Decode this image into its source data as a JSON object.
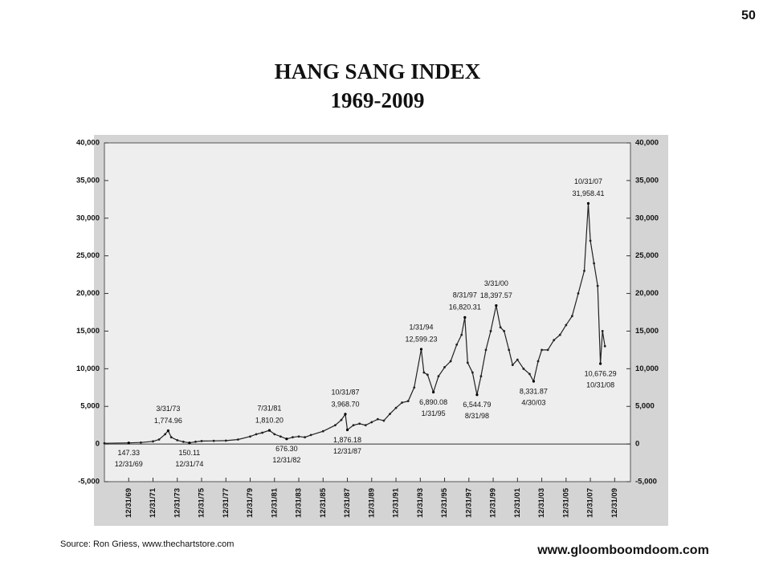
{
  "page_number": "50",
  "source": "Source:  Ron Griess, www.thechartstore.com",
  "website": "www.gloomboomdoom.com",
  "chart_data": {
    "type": "line",
    "title": "HANG  SANG  INDEX",
    "subtitle": "1969-2009",
    "color": "#222222",
    "x": [
      1968.0,
      1970.0,
      1971.0,
      1972.0,
      1972.5,
      1973.0,
      1973.25,
      1973.5,
      1974.0,
      1974.5,
      1975.0,
      1975.5,
      1976.0,
      1977.0,
      1978.0,
      1979.0,
      1980.0,
      1980.5,
      1981.0,
      1981.58,
      1982.0,
      1982.5,
      1983.0,
      1983.5,
      1984.0,
      1984.5,
      1985.0,
      1986.0,
      1987.0,
      1987.5,
      1987.83,
      1988.0,
      1988.5,
      1989.0,
      1989.5,
      1990.0,
      1990.5,
      1991.0,
      1991.5,
      1992.0,
      1992.5,
      1993.0,
      1993.5,
      1994.08,
      1994.3,
      1994.6,
      1995.08,
      1995.5,
      1996.0,
      1996.5,
      1997.0,
      1997.4,
      1997.67,
      1997.9,
      1998.3,
      1998.67,
      1999.0,
      1999.4,
      1999.8,
      2000.25,
      2000.6,
      2000.9,
      2001.3,
      2001.6,
      2002.0,
      2002.5,
      2003.0,
      2003.33,
      2003.7,
      2004.0,
      2004.5,
      2005.0,
      2005.5,
      2006.0,
      2006.5,
      2007.0,
      2007.5,
      2007.83,
      2008.0,
      2008.3,
      2008.6,
      2008.83,
      2009.0,
      2009.2
    ],
    "values": [
      100,
      147,
      200,
      350,
      600,
      1300,
      1775,
      900,
      500,
      300,
      150,
      300,
      400,
      420,
      450,
      600,
      1000,
      1300,
      1500,
      1810,
      1300,
      1000,
      676,
      900,
      1000,
      900,
      1200,
      1700,
      2500,
      3200,
      3969,
      1876,
      2500,
      2700,
      2500,
      2900,
      3300,
      3100,
      4000,
      4800,
      5500,
      5700,
      7500,
      12599,
      9500,
      9200,
      6890,
      9000,
      10200,
      11000,
      13200,
      14500,
      16820,
      10800,
      9500,
      6545,
      9000,
      12500,
      15000,
      18398,
      15500,
      15000,
      12500,
      10500,
      11200,
      10000,
      9300,
      8332,
      11000,
      12500,
      12500,
      13800,
      14500,
      15800,
      17000,
      20000,
      23000,
      31958,
      27000,
      24000,
      21000,
      10676,
      15000,
      13000
    ],
    "xlim": [
      1968,
      2011.3
    ],
    "xticks": [
      {
        "value": 1970,
        "label": "12/31/69"
      },
      {
        "value": 1972,
        "label": "12/31/71"
      },
      {
        "value": 1974,
        "label": "12/31/73"
      },
      {
        "value": 1976,
        "label": "12/31/75"
      },
      {
        "value": 1978,
        "label": "12/31/77"
      },
      {
        "value": 1980,
        "label": "12/31/79"
      },
      {
        "value": 1982,
        "label": "12/31/81"
      },
      {
        "value": 1984,
        "label": "12/31/83"
      },
      {
        "value": 1986,
        "label": "12/31/85"
      },
      {
        "value": 1988,
        "label": "12/31/87"
      },
      {
        "value": 1990,
        "label": "12/31/89"
      },
      {
        "value": 1992,
        "label": "12/31/91"
      },
      {
        "value": 1994,
        "label": "12/31/93"
      },
      {
        "value": 1996,
        "label": "12/31/95"
      },
      {
        "value": 1998,
        "label": "12/31/97"
      },
      {
        "value": 2000,
        "label": "12/31/99"
      },
      {
        "value": 2002,
        "label": "12/31/01"
      },
      {
        "value": 2004,
        "label": "12/31/03"
      },
      {
        "value": 2006,
        "label": "12/31/05"
      },
      {
        "value": 2008,
        "label": "12/31/07"
      },
      {
        "value": 2010,
        "label": "12/31/09"
      }
    ],
    "ylim": [
      -5000,
      40000
    ],
    "yticks": [
      {
        "value": -5000,
        "label": "-5,000"
      },
      0,
      {
        "value": 5000,
        "label": "5,000"
      },
      {
        "value": 10000,
        "label": "10,000"
      },
      {
        "value": 15000,
        "label": "15,000"
      },
      {
        "value": 20000,
        "label": "20,000"
      },
      {
        "value": 25000,
        "label": "25,000"
      },
      {
        "value": 30000,
        "label": "30,000"
      },
      {
        "value": 35000,
        "label": "35,000"
      },
      {
        "value": 40000,
        "label": "40,000"
      }
    ],
    "y2lim": [
      -5000,
      40000
    ],
    "y2ticks": [
      {
        "value": -5000,
        "label": "-5,000"
      },
      0,
      {
        "value": 5000,
        "label": "5,000"
      },
      {
        "value": 10000,
        "label": "10,000"
      },
      {
        "value": 15000,
        "label": "15,000"
      },
      {
        "value": 20000,
        "label": "20,000"
      },
      {
        "value": 25000,
        "label": "25,000"
      },
      {
        "value": 30000,
        "label": "30,000"
      },
      {
        "value": 35000,
        "label": "35,000"
      },
      {
        "value": 40000,
        "label": "40,000"
      }
    ],
    "annotations": [
      {
        "x": 1970.0,
        "date": "12/31/69",
        "value": 147.33,
        "label": "147.33"
      },
      {
        "x": 1973.25,
        "date": "3/31/73",
        "value": 1774.96,
        "label": "1,774.96"
      },
      {
        "x": 1975.0,
        "date": "12/31/74",
        "value": 150.11,
        "label": "150.11"
      },
      {
        "x": 1981.58,
        "date": "7/31/81",
        "value": 1810.2,
        "label": "1,810.20"
      },
      {
        "x": 1983.0,
        "date": "12/31/82",
        "value": 676.3,
        "label": "676.30"
      },
      {
        "x": 1987.83,
        "date": "10/31/87",
        "value": 3968.7,
        "label": "3,968.70"
      },
      {
        "x": 1988.0,
        "date": "12/31/87",
        "value": 1876.18,
        "label": "1,876.18"
      },
      {
        "x": 1994.08,
        "date": "1/31/94",
        "value": 12599.23,
        "label": "12,599.23"
      },
      {
        "x": 1995.08,
        "date": "1/31/95",
        "value": 6890.08,
        "label": "6,890.08"
      },
      {
        "x": 1997.67,
        "date": "8/31/97",
        "value": 16820.31,
        "label": "16,820.31"
      },
      {
        "x": 1998.67,
        "date": "8/31/98",
        "value": 6544.79,
        "label": "6,544.79"
      },
      {
        "x": 2000.25,
        "date": "3/31/00",
        "value": 18397.57,
        "label": "18,397.57"
      },
      {
        "x": 2003.33,
        "date": "4/30/03",
        "value": 8331.87,
        "label": "8,331.87"
      },
      {
        "x": 2007.83,
        "date": "10/31/07",
        "value": 31958.41,
        "label": "31,958.41"
      },
      {
        "x": 2008.83,
        "date": "10/31/08",
        "value": 10676.29,
        "label": "10,676.29"
      }
    ]
  }
}
